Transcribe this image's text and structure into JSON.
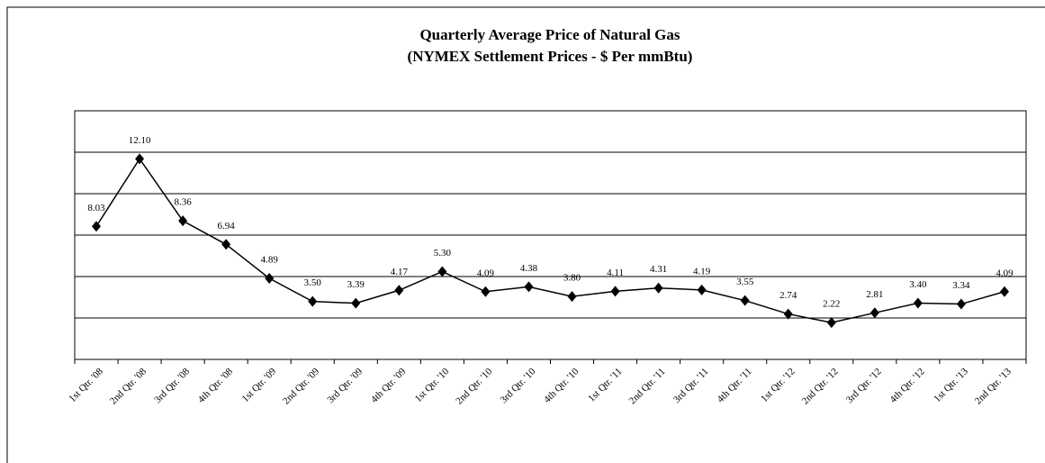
{
  "chart_data": {
    "type": "line",
    "title": "Quarterly  Average Price  of Natural Gas",
    "subtitle": "(NYMEX Settlement Prices - $ Per mmBtu)",
    "categories": [
      "1st Qtr. '08",
      "2nd Qtr. '08",
      "3rd Qtr. '08",
      "4th Qtr. '08",
      "1st Qtr. '09",
      "2nd Qtr. '09",
      "3rd Qtr. '09",
      "4th Qtr. '09",
      "1st Qtr. '10",
      "2nd Qtr. '10",
      "3rd Qtr. '10",
      "4th Qtr. '10",
      "1st Qtr. '11",
      "2nd Qtr. '11",
      "3rd Qtr. '11",
      "4th Qtr. '11",
      "1st Qtr. '12",
      "2nd Qtr. '12",
      "3rd Qtr. '12",
      "4th Qtr. '12",
      "1st Qtr. '13",
      "2nd Qtr. '13"
    ],
    "values": [
      8.03,
      12.1,
      8.36,
      6.94,
      4.89,
      3.5,
      3.39,
      4.17,
      5.3,
      4.09,
      4.38,
      3.8,
      4.11,
      4.31,
      4.19,
      3.55,
      2.74,
      2.22,
      2.81,
      3.4,
      3.34,
      4.09
    ],
    "value_labels": [
      "8.03",
      "12.10",
      "8.36",
      "6.94",
      "4.89",
      "3.50",
      "3.39",
      "4.17",
      "5.30",
      "4.09",
      "4.38",
      "3.80",
      "4.11",
      "4.31",
      "4.19",
      "3.55",
      "2.74",
      "2.22",
      "2.81",
      "3.40",
      "3.34",
      "4.09"
    ],
    "color": "#000000",
    "ylim": [
      0,
      15
    ],
    "yticks": [
      2.5,
      5,
      7.5,
      10,
      12.5
    ],
    "grid": true
  }
}
